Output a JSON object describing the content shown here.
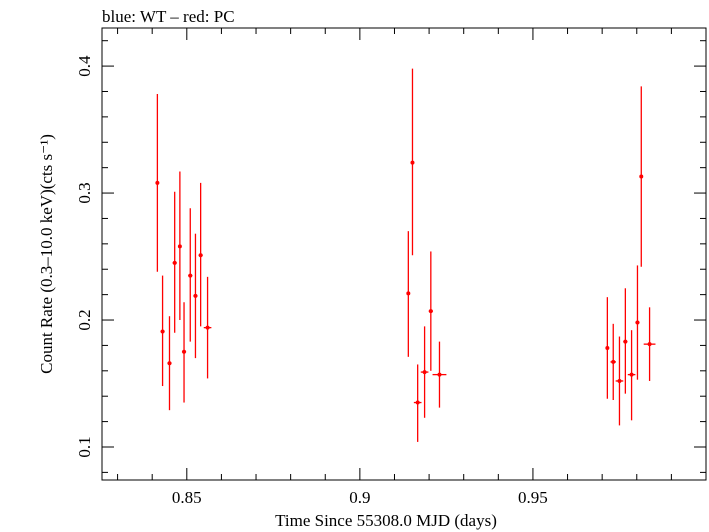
{
  "chart_data": {
    "type": "scatter",
    "title": "blue: WT – red: PC",
    "xlabel": "Time Since 55308.0 MJD (days)",
    "ylabel": "Count Rate (0.3–10.0 keV)(cts s⁻¹)",
    "xlim": [
      0.8255,
      1.0
    ],
    "ylim": [
      0.074,
      0.43
    ],
    "xticks": [
      0.85,
      0.9,
      0.95
    ],
    "xtick_labels": [
      "0.85",
      "0.9",
      "0.95"
    ],
    "yticks": [
      0.1,
      0.2,
      0.3,
      0.4
    ],
    "ytick_labels": [
      "0.1",
      "0.2",
      "0.3",
      "0.4"
    ],
    "grid": false,
    "series": [
      {
        "name": "PC",
        "color": "#ff0000",
        "points": [
          {
            "x": 0.8415,
            "y": 0.308,
            "xerr": 0.0003,
            "ylo": 0.238,
            "yhi": 0.378
          },
          {
            "x": 0.843,
            "y": 0.191,
            "xerr": 0.0006,
            "ylo": 0.148,
            "yhi": 0.235
          },
          {
            "x": 0.845,
            "y": 0.166,
            "xerr": 0.0006,
            "ylo": 0.129,
            "yhi": 0.203
          },
          {
            "x": 0.8465,
            "y": 0.245,
            "xerr": 0.0006,
            "ylo": 0.19,
            "yhi": 0.301
          },
          {
            "x": 0.848,
            "y": 0.258,
            "xerr": 0.0003,
            "ylo": 0.2,
            "yhi": 0.317
          },
          {
            "x": 0.8492,
            "y": 0.175,
            "xerr": 0.0006,
            "ylo": 0.135,
            "yhi": 0.214
          },
          {
            "x": 0.851,
            "y": 0.235,
            "xerr": 0.0006,
            "ylo": 0.183,
            "yhi": 0.288
          },
          {
            "x": 0.8525,
            "y": 0.219,
            "xerr": 0.0006,
            "ylo": 0.17,
            "yhi": 0.268
          },
          {
            "x": 0.854,
            "y": 0.251,
            "xerr": 0.0006,
            "ylo": 0.195,
            "yhi": 0.308
          },
          {
            "x": 0.856,
            "y": 0.194,
            "xerr": 0.0011,
            "ylo": 0.154,
            "yhi": 0.234
          },
          {
            "x": 0.914,
            "y": 0.221,
            "xerr": 0.0003,
            "ylo": 0.171,
            "yhi": 0.27
          },
          {
            "x": 0.9152,
            "y": 0.324,
            "xerr": 0.0003,
            "ylo": 0.251,
            "yhi": 0.398
          },
          {
            "x": 0.9167,
            "y": 0.135,
            "xerr": 0.0011,
            "ylo": 0.104,
            "yhi": 0.165
          },
          {
            "x": 0.9187,
            "y": 0.159,
            "xerr": 0.0011,
            "ylo": 0.123,
            "yhi": 0.195
          },
          {
            "x": 0.9205,
            "y": 0.207,
            "xerr": 0.0006,
            "ylo": 0.16,
            "yhi": 0.254
          },
          {
            "x": 0.923,
            "y": 0.157,
            "xerr": 0.002,
            "ylo": 0.131,
            "yhi": 0.183
          },
          {
            "x": 0.9715,
            "y": 0.178,
            "xerr": 0.0003,
            "ylo": 0.138,
            "yhi": 0.218
          },
          {
            "x": 0.9732,
            "y": 0.167,
            "xerr": 0.0008,
            "ylo": 0.137,
            "yhi": 0.197
          },
          {
            "x": 0.975,
            "y": 0.152,
            "xerr": 0.0011,
            "ylo": 0.117,
            "yhi": 0.187
          },
          {
            "x": 0.9767,
            "y": 0.183,
            "xerr": 0.0006,
            "ylo": 0.142,
            "yhi": 0.225
          },
          {
            "x": 0.9785,
            "y": 0.157,
            "xerr": 0.0011,
            "ylo": 0.121,
            "yhi": 0.192
          },
          {
            "x": 0.9802,
            "y": 0.198,
            "xerr": 0.0006,
            "ylo": 0.153,
            "yhi": 0.243
          },
          {
            "x": 0.9813,
            "y": 0.313,
            "xerr": 0.0003,
            "ylo": 0.242,
            "yhi": 0.384
          },
          {
            "x": 0.9837,
            "y": 0.181,
            "xerr": 0.0017,
            "ylo": 0.152,
            "yhi": 0.21
          }
        ]
      }
    ]
  }
}
